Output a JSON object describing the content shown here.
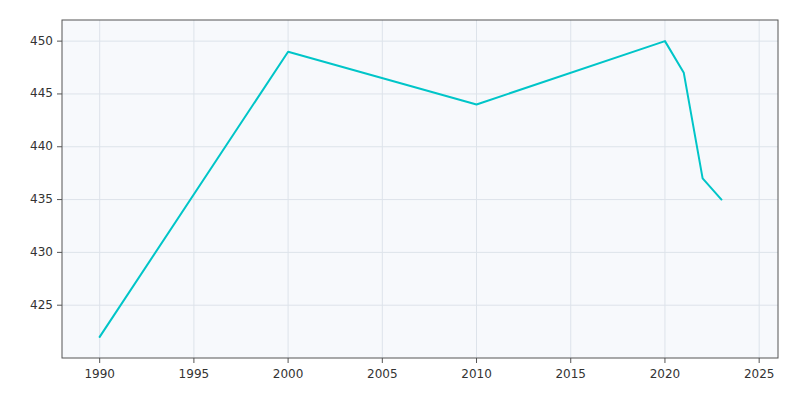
{
  "chart_data": {
    "type": "line",
    "x": [
      1990,
      2000,
      2010,
      2020,
      2021,
      2022,
      2023
    ],
    "values": [
      422,
      449,
      444,
      450,
      447,
      437,
      435
    ],
    "color": "#00C5C8",
    "xlim": [
      1988,
      2026
    ],
    "ylim": [
      420,
      452
    ],
    "xticks": [
      1990,
      1995,
      2000,
      2005,
      2010,
      2015,
      2020,
      2025
    ],
    "yticks": [
      425,
      430,
      435,
      440,
      445,
      450
    ],
    "grid": true
  }
}
